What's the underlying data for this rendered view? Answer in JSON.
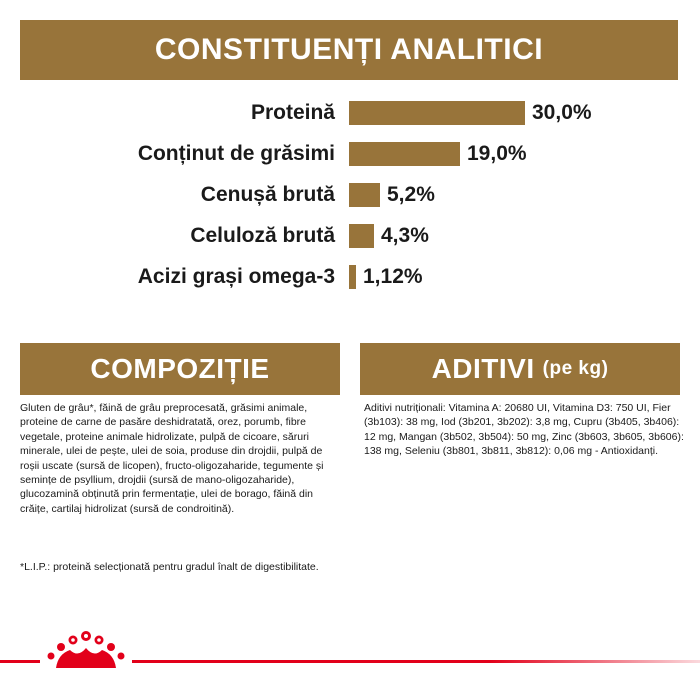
{
  "header": {
    "title": "CONSTITUENȚI ANALITICI"
  },
  "analytics": {
    "rows": [
      {
        "label": "Proteină",
        "value": "30,0%",
        "amount": 30.0
      },
      {
        "label": "Conținut de grăsimi",
        "value": "19,0%",
        "amount": 19.0
      },
      {
        "label": "Cenușă brută",
        "value": "5,2%",
        "amount": 5.2
      },
      {
        "label": "Celuloză brută",
        "value": "4,3%",
        "amount": 4.3
      },
      {
        "label": "Acizi grași omega-3",
        "value": "1,12%",
        "amount": 1.12
      }
    ]
  },
  "composition": {
    "title": "COMPOZIȚIE",
    "text": "Gluten de grâu*, făină de grâu preprocesată, grăsimi animale, proteine de carne de pasăre deshidratată, orez, porumb, fibre vegetale, proteine animale hidrolizate, pulpă de cicoare, săruri minerale, ulei de pește, ulei de soia, produse din drojdii, pulpă de roșii uscate (sursă de licopen), fructo-oligozaharide, tegumente și semințe de psyllium, drojdii (sursă de mano-oligozaharide), glucozamină obținută prin fermentație, ulei de borago, făină din crăițe, cartilaj hidrolizat (sursă de condroitină).",
    "note": "*L.I.P.: proteină selecționată pentru gradul înalt de digestibilitate."
  },
  "additives": {
    "title": "ADITIVI",
    "subtitle": "(pe kg)",
    "text": "Aditivi nutriționali: Vitamina A: 20680 UI, Vitamina D3: 750 UI, Fier (3b103): 38 mg, Iod (3b201, 3b202): 3,8 mg, Cupru (3b405, 3b406): 12 mg, Mangan (3b502, 3b504): 50 mg, Zinc (3b603, 3b605, 3b606): 138 mg, Seleniu (3b801, 3b811, 3b812): 0,06 mg - Antioxidanți."
  },
  "colors": {
    "accent": "#98743a",
    "brand_red": "#e2001a",
    "text": "#1a1a1a"
  },
  "icons": {
    "logo": "crown-logo-icon"
  }
}
